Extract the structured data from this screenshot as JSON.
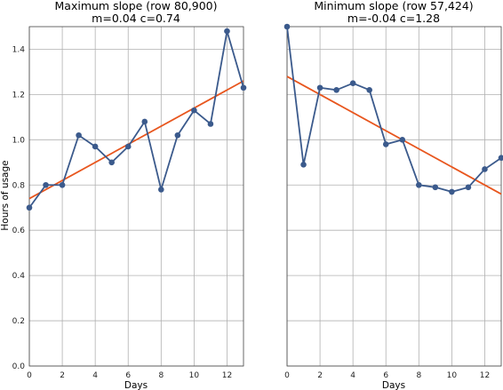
{
  "chart_data": [
    {
      "type": "line",
      "title": "Maximum slope (row 80,900)",
      "subtitle": "m=0.04 c=0.74",
      "xlabel": "Days",
      "ylabel": "Hours of usage",
      "xlim": [
        0,
        13
      ],
      "ylim": [
        0,
        1.5
      ],
      "xticks": [
        "0",
        "2",
        "4",
        "6",
        "8",
        "10",
        "12"
      ],
      "yticks": [
        "0.0",
        "0.2",
        "0.4",
        "0.6",
        "0.8",
        "1.0",
        "1.2",
        "1.4"
      ],
      "grid": true,
      "series": [
        {
          "kind": "data",
          "color": "#3b5a8c",
          "x": [
            0,
            1,
            2,
            3,
            4,
            5,
            6,
            7,
            8,
            9,
            10,
            11,
            12,
            13
          ],
          "y": [
            0.7,
            0.8,
            0.8,
            1.02,
            0.97,
            0.9,
            0.97,
            1.08,
            0.78,
            1.02,
            1.13,
            1.07,
            1.48,
            1.23
          ]
        },
        {
          "kind": "fit",
          "color": "#e8561e",
          "x": [
            0,
            13
          ],
          "y": [
            0.74,
            1.26
          ]
        }
      ]
    },
    {
      "type": "line",
      "title": "Minimum slope (row 57,424)",
      "subtitle": "m=-0.04 c=1.28",
      "xlabel": "Days",
      "ylabel": "",
      "xlim": [
        0,
        13
      ],
      "ylim": [
        0,
        1.5
      ],
      "xticks": [
        "0",
        "2",
        "4",
        "6",
        "8",
        "10",
        "12"
      ],
      "yticks": [],
      "grid": true,
      "series": [
        {
          "kind": "data",
          "color": "#3b5a8c",
          "x": [
            0,
            1,
            2,
            3,
            4,
            5,
            6,
            7,
            8,
            9,
            10,
            11,
            12,
            13
          ],
          "y": [
            1.5,
            0.89,
            1.23,
            1.22,
            1.25,
            1.22,
            0.98,
            1.0,
            0.8,
            0.79,
            0.77,
            0.79,
            0.87,
            0.92
          ]
        },
        {
          "kind": "fit",
          "color": "#e8561e",
          "x": [
            0,
            13
          ],
          "y": [
            1.28,
            0.76
          ]
        }
      ]
    }
  ]
}
